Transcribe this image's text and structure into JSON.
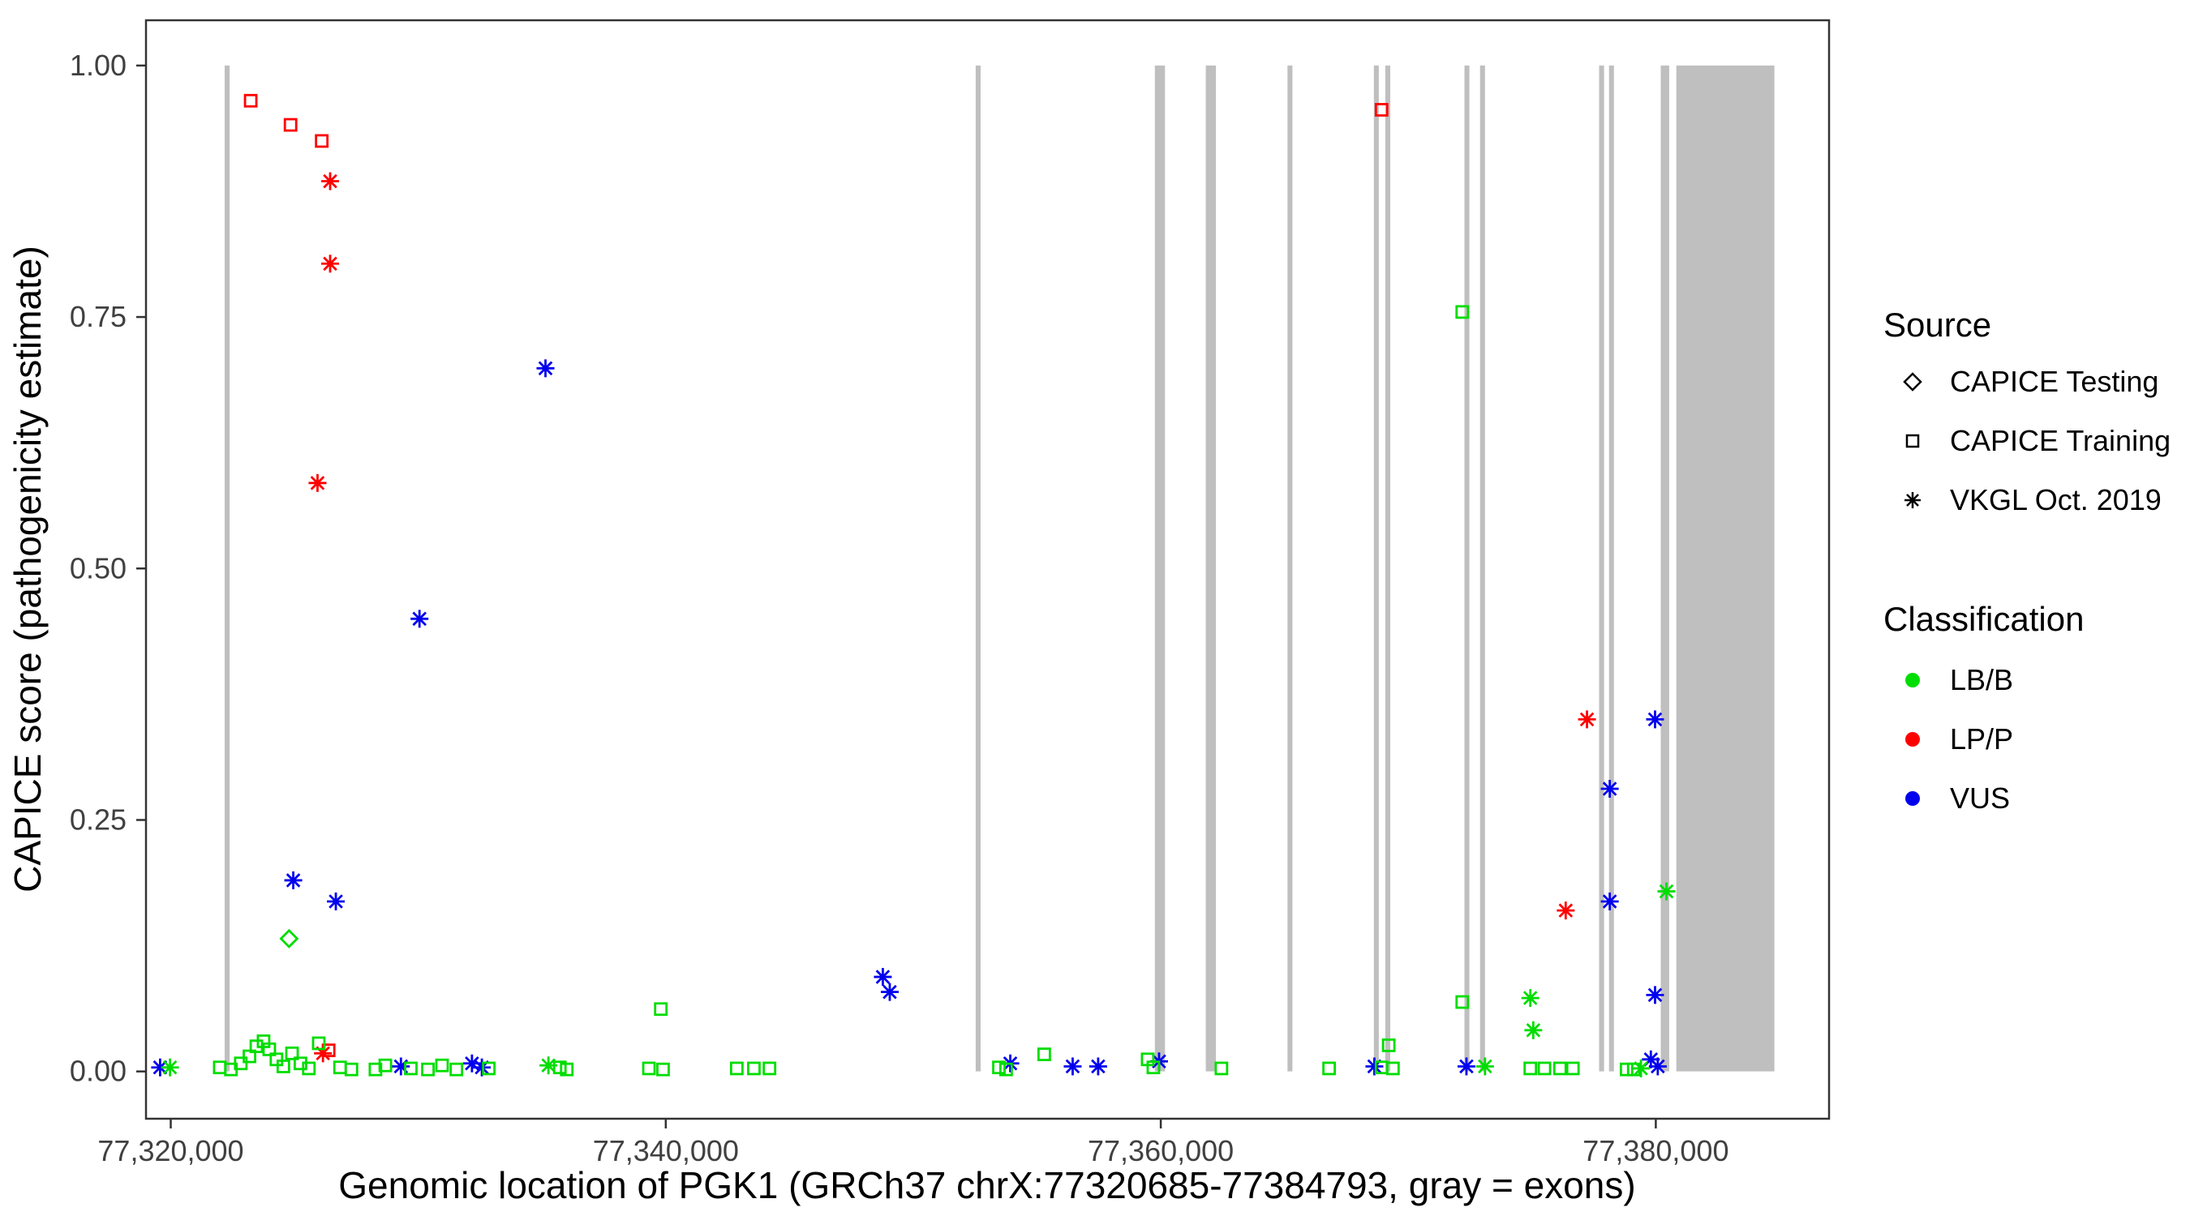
{
  "figure": {
    "background": "#ffffff",
    "panel_border_color": "#333333",
    "tick_text_color": "#404040"
  },
  "legend": {
    "source": {
      "title": "Source",
      "items": [
        {
          "label": "CAPICE Testing",
          "shape": "diamond"
        },
        {
          "label": "CAPICE Training",
          "shape": "square"
        },
        {
          "label": "VKGL Oct. 2019",
          "shape": "asterisk"
        }
      ]
    },
    "classification": {
      "title": "Classification",
      "items": [
        {
          "label": "LB/B",
          "color": "#00DD00"
        },
        {
          "label": "LP/P",
          "color": "#FF0000"
        },
        {
          "label": "VUS",
          "color": "#0000EE"
        }
      ]
    }
  },
  "chart_data": {
    "type": "scatter",
    "title": "",
    "xlabel": "Genomic location of PGK1 (GRCh37 chrX:77320685-77384793, gray = exons)",
    "ylabel": "CAPICE score (pathogenicity estimate)",
    "xlim": [
      77319000,
      77387000
    ],
    "ylim": [
      -0.047,
      1.045
    ],
    "xticks": [
      {
        "value": 77320000,
        "label": "77,320,000"
      },
      {
        "value": 77340000,
        "label": "77,340,000"
      },
      {
        "value": 77360000,
        "label": "77,360,000"
      },
      {
        "value": 77380000,
        "label": "77,380,000"
      }
    ],
    "yticks": [
      {
        "value": 0.0,
        "label": "0.00"
      },
      {
        "value": 0.25,
        "label": "0.25"
      },
      {
        "value": 0.5,
        "label": "0.50"
      },
      {
        "value": 0.75,
        "label": "0.75"
      },
      {
        "value": 1.0,
        "label": "1.00"
      }
    ],
    "exon_color": "#BFBFBF",
    "exons": [
      [
        77322180,
        77322380
      ],
      [
        77352520,
        77352720
      ],
      [
        77359760,
        77360170
      ],
      [
        77361820,
        77362230
      ],
      [
        77365120,
        77365320
      ],
      [
        77368610,
        77368810
      ],
      [
        77369070,
        77369270
      ],
      [
        77372270,
        77372470
      ],
      [
        77372900,
        77373100
      ],
      [
        77377710,
        77377910
      ],
      [
        77378110,
        77378310
      ],
      [
        77380200,
        77380540
      ],
      [
        77380830,
        77384793
      ]
    ],
    "shape_by_source": {
      "CAPICE Testing": "diamond",
      "CAPICE Training": "square",
      "VKGL Oct. 2019": "asterisk"
    },
    "color_by_class": {
      "LB/B": "#00DD00",
      "LP/P": "#FF0000",
      "VUS": "#0000EE"
    },
    "points": [
      {
        "x": 77323230,
        "y": 0.965,
        "source": "CAPICE Training",
        "class": "LP/P"
      },
      {
        "x": 77324840,
        "y": 0.941,
        "source": "CAPICE Training",
        "class": "LP/P"
      },
      {
        "x": 77326100,
        "y": 0.925,
        "source": "CAPICE Training",
        "class": "LP/P"
      },
      {
        "x": 77368920,
        "y": 0.956,
        "source": "CAPICE Training",
        "class": "LP/P"
      },
      {
        "x": 77326380,
        "y": 0.021,
        "source": "CAPICE Training",
        "class": "LP/P"
      },
      {
        "x": 77326440,
        "y": 0.885,
        "source": "VKGL Oct. 2019",
        "class": "LP/P"
      },
      {
        "x": 77326440,
        "y": 0.803,
        "source": "VKGL Oct. 2019",
        "class": "LP/P"
      },
      {
        "x": 77325930,
        "y": 0.585,
        "source": "VKGL Oct. 2019",
        "class": "LP/P"
      },
      {
        "x": 77376360,
        "y": 0.16,
        "source": "VKGL Oct. 2019",
        "class": "LP/P"
      },
      {
        "x": 77377220,
        "y": 0.35,
        "source": "VKGL Oct. 2019",
        "class": "LP/P"
      },
      {
        "x": 77326150,
        "y": 0.018,
        "source": "VKGL Oct. 2019",
        "class": "LP/P"
      },
      {
        "x": 77335140,
        "y": 0.699,
        "source": "VKGL Oct. 2019",
        "class": "VUS"
      },
      {
        "x": 77330050,
        "y": 0.45,
        "source": "VKGL Oct. 2019",
        "class": "VUS"
      },
      {
        "x": 77324950,
        "y": 0.19,
        "source": "VKGL Oct. 2019",
        "class": "VUS"
      },
      {
        "x": 77326670,
        "y": 0.169,
        "source": "VKGL Oct. 2019",
        "class": "VUS"
      },
      {
        "x": 77348770,
        "y": 0.094,
        "source": "VKGL Oct. 2019",
        "class": "VUS"
      },
      {
        "x": 77349050,
        "y": 0.079,
        "source": "VKGL Oct. 2019",
        "class": "VUS"
      },
      {
        "x": 77378140,
        "y": 0.281,
        "source": "VKGL Oct. 2019",
        "class": "VUS"
      },
      {
        "x": 77378140,
        "y": 0.169,
        "source": "VKGL Oct. 2019",
        "class": "VUS"
      },
      {
        "x": 77379970,
        "y": 0.35,
        "source": "VKGL Oct. 2019",
        "class": "VUS"
      },
      {
        "x": 77379970,
        "y": 0.076,
        "source": "VKGL Oct. 2019",
        "class": "VUS"
      },
      {
        "x": 77319570,
        "y": 0.004,
        "source": "VKGL Oct. 2019",
        "class": "VUS"
      },
      {
        "x": 77329300,
        "y": 0.005,
        "source": "VKGL Oct. 2019",
        "class": "VUS"
      },
      {
        "x": 77332170,
        "y": 0.008,
        "source": "VKGL Oct. 2019",
        "class": "VUS"
      },
      {
        "x": 77332570,
        "y": 0.004,
        "source": "VKGL Oct. 2019",
        "class": "VUS"
      },
      {
        "x": 77353920,
        "y": 0.008,
        "source": "VKGL Oct. 2019",
        "class": "VUS"
      },
      {
        "x": 77356440,
        "y": 0.005,
        "source": "VKGL Oct. 2019",
        "class": "VUS"
      },
      {
        "x": 77357470,
        "y": 0.005,
        "source": "VKGL Oct. 2019",
        "class": "VUS"
      },
      {
        "x": 77359930,
        "y": 0.01,
        "source": "VKGL Oct. 2019",
        "class": "VUS"
      },
      {
        "x": 77368630,
        "y": 0.005,
        "source": "VKGL Oct. 2019",
        "class": "VUS"
      },
      {
        "x": 77372350,
        "y": 0.005,
        "source": "VKGL Oct. 2019",
        "class": "VUS"
      },
      {
        "x": 77379800,
        "y": 0.012,
        "source": "VKGL Oct. 2019",
        "class": "VUS"
      },
      {
        "x": 77380080,
        "y": 0.005,
        "source": "VKGL Oct. 2019",
        "class": "VUS"
      },
      {
        "x": 77324780,
        "y": 0.132,
        "source": "CAPICE Testing",
        "class": "LB/B"
      },
      {
        "x": 77319970,
        "y": 0.004,
        "source": "VKGL Oct. 2019",
        "class": "LB/B"
      },
      {
        "x": 77335260,
        "y": 0.006,
        "source": "VKGL Oct. 2019",
        "class": "LB/B"
      },
      {
        "x": 77373100,
        "y": 0.005,
        "source": "VKGL Oct. 2019",
        "class": "LB/B"
      },
      {
        "x": 77374930,
        "y": 0.073,
        "source": "VKGL Oct. 2019",
        "class": "LB/B"
      },
      {
        "x": 77375050,
        "y": 0.041,
        "source": "VKGL Oct. 2019",
        "class": "LB/B"
      },
      {
        "x": 77379400,
        "y": 0.003,
        "source": "VKGL Oct. 2019",
        "class": "LB/B"
      },
      {
        "x": 77380430,
        "y": 0.179,
        "source": "VKGL Oct. 2019",
        "class": "LB/B"
      },
      {
        "x": 77372180,
        "y": 0.755,
        "source": "CAPICE Training",
        "class": "LB/B"
      },
      {
        "x": 77339800,
        "y": 0.062,
        "source": "CAPICE Training",
        "class": "LB/B"
      },
      {
        "x": 77372180,
        "y": 0.069,
        "source": "CAPICE Training",
        "class": "LB/B"
      },
      {
        "x": 77321980,
        "y": 0.004,
        "source": "CAPICE Training",
        "class": "LB/B"
      },
      {
        "x": 77322430,
        "y": 0.002,
        "source": "CAPICE Training",
        "class": "LB/B"
      },
      {
        "x": 77322830,
        "y": 0.008,
        "source": "CAPICE Training",
        "class": "LB/B"
      },
      {
        "x": 77323180,
        "y": 0.015,
        "source": "CAPICE Training",
        "class": "LB/B"
      },
      {
        "x": 77323460,
        "y": 0.025,
        "source": "CAPICE Training",
        "class": "LB/B"
      },
      {
        "x": 77323750,
        "y": 0.03,
        "source": "CAPICE Training",
        "class": "LB/B"
      },
      {
        "x": 77323980,
        "y": 0.022,
        "source": "CAPICE Training",
        "class": "LB/B"
      },
      {
        "x": 77324270,
        "y": 0.012,
        "source": "CAPICE Training",
        "class": "LB/B"
      },
      {
        "x": 77324550,
        "y": 0.005,
        "source": "CAPICE Training",
        "class": "LB/B"
      },
      {
        "x": 77324900,
        "y": 0.018,
        "source": "CAPICE Training",
        "class": "LB/B"
      },
      {
        "x": 77325240,
        "y": 0.008,
        "source": "CAPICE Training",
        "class": "LB/B"
      },
      {
        "x": 77325580,
        "y": 0.003,
        "source": "CAPICE Training",
        "class": "LB/B"
      },
      {
        "x": 77325980,
        "y": 0.028,
        "source": "CAPICE Training",
        "class": "LB/B"
      },
      {
        "x": 77326840,
        "y": 0.004,
        "source": "CAPICE Training",
        "class": "LB/B"
      },
      {
        "x": 77327300,
        "y": 0.002,
        "source": "CAPICE Training",
        "class": "LB/B"
      },
      {
        "x": 77328270,
        "y": 0.002,
        "source": "CAPICE Training",
        "class": "LB/B"
      },
      {
        "x": 77328670,
        "y": 0.006,
        "source": "CAPICE Training",
        "class": "LB/B"
      },
      {
        "x": 77329700,
        "y": 0.003,
        "source": "CAPICE Training",
        "class": "LB/B"
      },
      {
        "x": 77330390,
        "y": 0.002,
        "source": "CAPICE Training",
        "class": "LB/B"
      },
      {
        "x": 77330960,
        "y": 0.006,
        "source": "CAPICE Training",
        "class": "LB/B"
      },
      {
        "x": 77331540,
        "y": 0.002,
        "source": "CAPICE Training",
        "class": "LB/B"
      },
      {
        "x": 77332850,
        "y": 0.003,
        "source": "CAPICE Training",
        "class": "LB/B"
      },
      {
        "x": 77335720,
        "y": 0.004,
        "source": "CAPICE Training",
        "class": "LB/B"
      },
      {
        "x": 77336000,
        "y": 0.002,
        "source": "CAPICE Training",
        "class": "LB/B"
      },
      {
        "x": 77339320,
        "y": 0.003,
        "source": "CAPICE Training",
        "class": "LB/B"
      },
      {
        "x": 77339890,
        "y": 0.002,
        "source": "CAPICE Training",
        "class": "LB/B"
      },
      {
        "x": 77342870,
        "y": 0.003,
        "source": "CAPICE Training",
        "class": "LB/B"
      },
      {
        "x": 77343560,
        "y": 0.003,
        "source": "CAPICE Training",
        "class": "LB/B"
      },
      {
        "x": 77344190,
        "y": 0.003,
        "source": "CAPICE Training",
        "class": "LB/B"
      },
      {
        "x": 77353460,
        "y": 0.004,
        "source": "CAPICE Training",
        "class": "LB/B"
      },
      {
        "x": 77353750,
        "y": 0.002,
        "source": "CAPICE Training",
        "class": "LB/B"
      },
      {
        "x": 77355290,
        "y": 0.017,
        "source": "CAPICE Training",
        "class": "LB/B"
      },
      {
        "x": 77359470,
        "y": 0.012,
        "source": "CAPICE Training",
        "class": "LB/B"
      },
      {
        "x": 77359700,
        "y": 0.004,
        "source": "CAPICE Training",
        "class": "LB/B"
      },
      {
        "x": 77362450,
        "y": 0.003,
        "source": "CAPICE Training",
        "class": "LB/B"
      },
      {
        "x": 77366800,
        "y": 0.003,
        "source": "CAPICE Training",
        "class": "LB/B"
      },
      {
        "x": 77368920,
        "y": 0.004,
        "source": "CAPICE Training",
        "class": "LB/B"
      },
      {
        "x": 77369210,
        "y": 0.026,
        "source": "CAPICE Training",
        "class": "LB/B"
      },
      {
        "x": 77369380,
        "y": 0.003,
        "source": "CAPICE Training",
        "class": "LB/B"
      },
      {
        "x": 77374930,
        "y": 0.003,
        "source": "CAPICE Training",
        "class": "LB/B"
      },
      {
        "x": 77375500,
        "y": 0.003,
        "source": "CAPICE Training",
        "class": "LB/B"
      },
      {
        "x": 77376130,
        "y": 0.003,
        "source": "CAPICE Training",
        "class": "LB/B"
      },
      {
        "x": 77376650,
        "y": 0.003,
        "source": "CAPICE Training",
        "class": "LB/B"
      },
      {
        "x": 77378820,
        "y": 0.002,
        "source": "CAPICE Training",
        "class": "LB/B"
      },
      {
        "x": 77379110,
        "y": 0.002,
        "source": "CAPICE Training",
        "class": "LB/B"
      }
    ]
  }
}
